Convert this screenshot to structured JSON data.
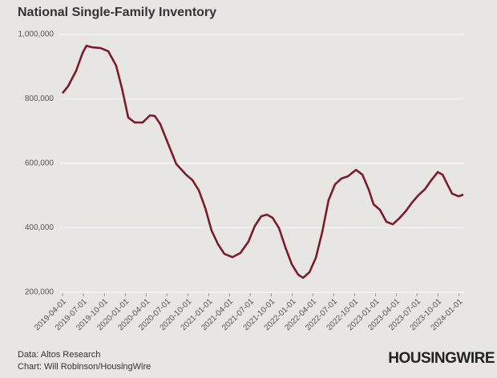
{
  "chart_data": {
    "type": "line",
    "title": "National Single-Family Inventory",
    "x": [
      "2019-04-01",
      "2019-04-26",
      "2019-05-31",
      "2019-06-28",
      "2019-07-15",
      "2019-08-09",
      "2019-09-13",
      "2019-10-18",
      "2019-11-22",
      "2019-12-17",
      "2020-01-14",
      "2020-02-11",
      "2020-03-17",
      "2020-04-18",
      "2020-05-09",
      "2020-06-02",
      "2020-07-07",
      "2020-08-11",
      "2020-09-23",
      "2020-10-21",
      "2020-11-18",
      "2020-12-16",
      "2021-01-13",
      "2021-02-10",
      "2021-03-10",
      "2021-04-14",
      "2021-05-19",
      "2021-06-23",
      "2021-07-21",
      "2021-08-18",
      "2021-09-12",
      "2021-10-07",
      "2021-11-04",
      "2021-12-02",
      "2021-12-30",
      "2022-01-27",
      "2022-02-17",
      "2022-03-17",
      "2022-04-14",
      "2022-05-12",
      "2022-06-09",
      "2022-07-07",
      "2022-08-04",
      "2022-09-02",
      "2022-10-07",
      "2022-11-04",
      "2022-12-02",
      "2022-12-23",
      "2023-01-20",
      "2023-02-17",
      "2023-03-17",
      "2023-04-14",
      "2023-05-12",
      "2023-06-09",
      "2023-07-07",
      "2023-08-05",
      "2023-09-02",
      "2023-09-30",
      "2023-10-21",
      "2023-11-11",
      "2023-12-02",
      "2023-12-30",
      "2024-01-20"
    ],
    "series": [
      {
        "name": "Inventory",
        "color": "#7b1c2a",
        "values": [
          818000,
          840000,
          888000,
          943000,
          965000,
          960000,
          958000,
          948000,
          903000,
          833000,
          742000,
          727000,
          727000,
          749000,
          747000,
          722000,
          660000,
          598000,
          565000,
          548000,
          516000,
          461000,
          391000,
          349000,
          319000,
          309000,
          322000,
          357000,
          406000,
          436000,
          441000,
          431000,
          399000,
          339000,
          287000,
          255000,
          245000,
          262000,
          307000,
          386000,
          486000,
          535000,
          553000,
          560000,
          580000,
          565000,
          518000,
          473000,
          456000,
          419000,
          411000,
          429000,
          451000,
          478000,
          501000,
          520000,
          548000,
          573000,
          565000,
          535000,
          506000,
          498000,
          503000
        ]
      }
    ],
    "xlim": [
      "2019-03-25",
      "2024-01-27"
    ],
    "xticks": [
      "2019-04-01",
      "2019-07-01",
      "2019-10-01",
      "2020-01-01",
      "2020-04-01",
      "2020-07-01",
      "2020-10-01",
      "2021-01-01",
      "2021-04-01",
      "2021-07-01",
      "2021-10-01",
      "2022-01-01",
      "2022-04-01",
      "2022-07-01",
      "2022-10-01",
      "2023-01-01",
      "2023-04-01",
      "2023-07-01",
      "2023-10-01",
      "2024-01-01"
    ],
    "ylim": [
      200000,
      1000000
    ],
    "yticks": [
      {
        "value": 200000,
        "label": "200,000"
      },
      {
        "value": 400000,
        "label": "400,000"
      },
      {
        "value": 600000,
        "label": "600,000"
      },
      {
        "value": 800000,
        "label": "800,000"
      },
      {
        "value": 1000000,
        "label": "1,000,000"
      }
    ],
    "grid": true,
    "source": "Data: Altos Research",
    "credit": "Chart: Will Robinson/HousingWire",
    "logo": "HOUSINGWIRE"
  }
}
